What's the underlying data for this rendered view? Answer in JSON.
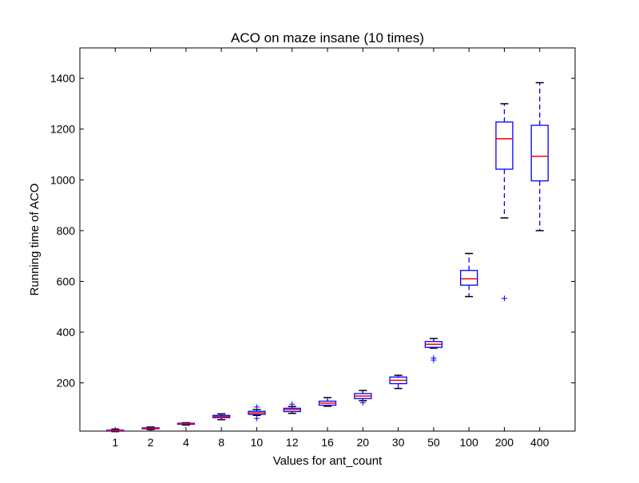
{
  "chart_data": {
    "type": "box",
    "title": "ACO on maze insane (10 times)",
    "xlabel": "Values for ant_count",
    "ylabel": "Running time of ACO",
    "ylim": [
      10,
      1520
    ],
    "yticks": [
      200,
      400,
      600,
      800,
      1000,
      1200,
      1400
    ],
    "grid": false,
    "colors": {
      "box": "#0000ff",
      "median": "#ff0000",
      "whisker": "#0000ff",
      "cap": "#000000",
      "flier": "#0000ff",
      "axis": "#000000"
    },
    "categories": [
      "1",
      "2",
      "4",
      "8",
      "10",
      "12",
      "16",
      "20",
      "30",
      "50",
      "100",
      "200",
      "400"
    ],
    "boxes": [
      {
        "whisker_low": 8,
        "q1": 10,
        "median": 12,
        "q3": 14,
        "whisker_high": 18,
        "fliers": []
      },
      {
        "whisker_low": 16,
        "q1": 19,
        "median": 21,
        "q3": 23,
        "whisker_high": 26,
        "fliers": []
      },
      {
        "whisker_low": 34,
        "q1": 37,
        "median": 39,
        "q3": 41,
        "whisker_high": 43,
        "fliers": []
      },
      {
        "whisker_low": 55,
        "q1": 63,
        "median": 68,
        "q3": 72,
        "whisker_high": 78,
        "fliers": []
      },
      {
        "whisker_low": 72,
        "q1": 76,
        "median": 82,
        "q3": 88,
        "whisker_high": 95,
        "fliers": [
          60,
          105
        ]
      },
      {
        "whisker_low": 80,
        "q1": 87,
        "median": 94,
        "q3": 100,
        "whisker_high": 107,
        "fliers": [
          116
        ]
      },
      {
        "whisker_low": 108,
        "q1": 112,
        "median": 120,
        "q3": 128,
        "whisker_high": 142,
        "fliers": []
      },
      {
        "whisker_low": 130,
        "q1": 138,
        "median": 148,
        "q3": 158,
        "whisker_high": 170,
        "fliers": [
          122
        ]
      },
      {
        "whisker_low": 178,
        "q1": 197,
        "median": 210,
        "q3": 223,
        "whisker_high": 230,
        "fliers": []
      },
      {
        "whisker_low": 337,
        "q1": 340,
        "median": 352,
        "q3": 363,
        "whisker_high": 375,
        "fliers": [
          298,
          290
        ]
      },
      {
        "whisker_low": 540,
        "q1": 585,
        "median": 610,
        "q3": 643,
        "whisker_high": 710,
        "fliers": []
      },
      {
        "whisker_low": 850,
        "q1": 1042,
        "median": 1162,
        "q3": 1228,
        "whisker_high": 1300,
        "fliers": [
          533
        ]
      },
      {
        "whisker_low": 800,
        "q1": 996,
        "median": 1093,
        "q3": 1215,
        "whisker_high": 1383,
        "fliers": []
      }
    ]
  }
}
